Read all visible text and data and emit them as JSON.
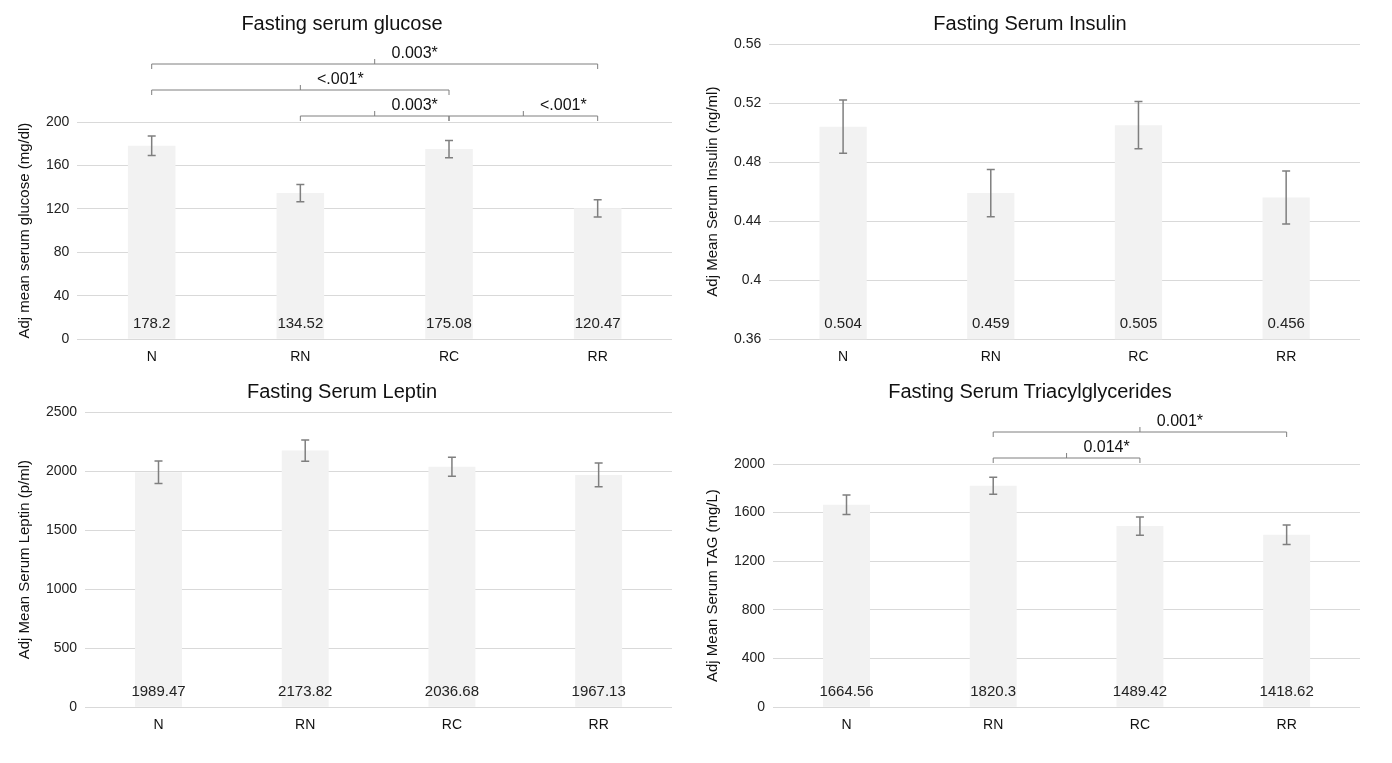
{
  "chart_data": [
    {
      "type": "bar",
      "title": "Fasting serum glucose",
      "ylabel": "Adj mean serum glucose (mg/dl)",
      "categories": [
        "N",
        "RN",
        "RC",
        "RR"
      ],
      "values": [
        178.2,
        134.52,
        175.08,
        120.47
      ],
      "errors": [
        9,
        8,
        8,
        8
      ],
      "color": "#f2f2f2",
      "ylim": [
        0,
        200
      ],
      "yticks": [
        0,
        40,
        80,
        120,
        160,
        200
      ],
      "grid": "y",
      "legend": false,
      "data_labels": true,
      "annotations": [
        "<.001*",
        "0.003*",
        "0.003*",
        "<.001*"
      ]
    },
    {
      "type": "bar",
      "title": "Fasting Serum Insulin",
      "ylabel": "Adj Mean Serum Insulin (ng/ml)",
      "categories": [
        "N",
        "RN",
        "RC",
        "RR"
      ],
      "values": [
        0.504,
        0.459,
        0.505,
        0.456
      ],
      "errors": [
        0.018,
        0.016,
        0.016,
        0.018
      ],
      "color": "#f2f2f2",
      "ylim": [
        0.36,
        0.56
      ],
      "yticks": [
        0.36,
        0.4,
        0.44,
        0.48,
        0.52,
        0.56
      ],
      "grid": "y",
      "legend": false,
      "data_labels": true
    },
    {
      "type": "bar",
      "title": "Fasting Serum Leptin",
      "ylabel": "Adj Mean Serum Leptin (p/ml)",
      "categories": [
        "N",
        "RN",
        "RC",
        "RR"
      ],
      "values": [
        1989.47,
        2173.82,
        2036.68,
        1967.13
      ],
      "errors": [
        95,
        90,
        80,
        100
      ],
      "color": "#f2f2f2",
      "ylim": [
        0,
        2500
      ],
      "yticks": [
        0,
        500,
        1000,
        1500,
        2000,
        2500
      ],
      "grid": "y",
      "legend": false,
      "data_labels": true
    },
    {
      "type": "bar",
      "title": "Fasting Serum Triacylglycerides",
      "ylabel": "Adj Mean Serum TAG (mg/L)",
      "categories": [
        "N",
        "RN",
        "RC",
        "RR"
      ],
      "values": [
        1664.56,
        1820.3,
        1489.42,
        1418.62
      ],
      "errors": [
        80,
        70,
        75,
        80
      ],
      "color": "#f2f2f2",
      "ylim": [
        0,
        2000
      ],
      "yticks": [
        0,
        400,
        800,
        1200,
        1600,
        2000
      ],
      "grid": "y",
      "legend": false,
      "data_labels": true,
      "annotations": [
        "0.014*",
        "0.001*"
      ]
    }
  ]
}
